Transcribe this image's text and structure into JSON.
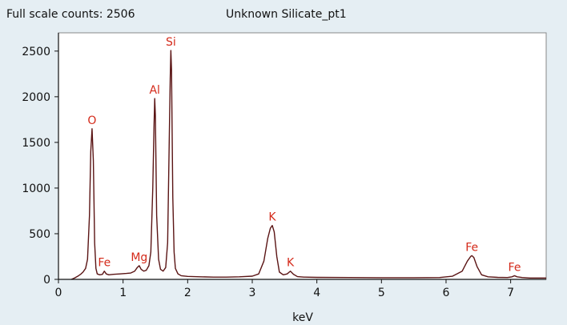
{
  "header": {
    "full_scale": "Full scale counts: 2506",
    "title": "Unknown Silicate_pt1"
  },
  "chart_data": {
    "type": "line",
    "title": "Unknown Silicate_pt1",
    "xlabel": "keV",
    "ylabel": "",
    "xlim": [
      0,
      7.55
    ],
    "ylim": [
      0,
      2700
    ],
    "x_ticks": [
      0,
      1,
      2,
      3,
      4,
      5,
      6,
      7
    ],
    "y_ticks": [
      0,
      500,
      1000,
      1500,
      2000,
      2500
    ],
    "grid": false,
    "full_scale_counts": 2506,
    "peaks": [
      {
        "element": "O",
        "energy": 0.52,
        "counts": 1650
      },
      {
        "element": "Fe",
        "energy": 0.71,
        "counts": 90
      },
      {
        "element": "Mg",
        "energy": 1.25,
        "counts": 150
      },
      {
        "element": "Al",
        "energy": 1.49,
        "counts": 1980
      },
      {
        "element": "Si",
        "energy": 1.74,
        "counts": 2506
      },
      {
        "element": "K",
        "energy": 3.31,
        "counts": 590
      },
      {
        "element": "K",
        "energy": 3.59,
        "counts": 90
      },
      {
        "element": "Fe",
        "energy": 6.4,
        "counts": 260
      },
      {
        "element": "Fe",
        "energy": 7.06,
        "counts": 40
      }
    ],
    "series": [
      {
        "x": [
          0.2,
          0.25,
          0.3,
          0.35,
          0.38,
          0.42,
          0.45,
          0.48,
          0.5,
          0.52,
          0.54,
          0.56,
          0.58,
          0.6,
          0.64,
          0.68,
          0.71,
          0.74,
          0.78,
          0.85,
          0.95,
          1.05,
          1.12,
          1.18,
          1.22,
          1.25,
          1.28,
          1.32,
          1.36,
          1.4,
          1.43,
          1.46,
          1.48,
          1.49,
          1.5,
          1.52,
          1.55,
          1.58,
          1.62,
          1.66,
          1.69,
          1.71,
          1.73,
          1.74,
          1.75,
          1.77,
          1.79,
          1.81,
          1.85,
          1.9,
          2.0,
          2.2,
          2.4,
          2.6,
          2.8,
          3.0,
          3.1,
          3.18,
          3.24,
          3.28,
          3.31,
          3.34,
          3.38,
          3.42,
          3.48,
          3.54,
          3.59,
          3.64,
          3.7,
          3.8,
          4.0,
          4.5,
          5.0,
          5.5,
          5.9,
          6.1,
          6.25,
          6.33,
          6.38,
          6.4,
          6.43,
          6.48,
          6.55,
          6.65,
          6.8,
          6.95,
          7.02,
          7.06,
          7.1,
          7.18,
          7.3,
          7.55
        ],
        "y": [
          0,
          15,
          35,
          60,
          80,
          120,
          220,
          700,
          1400,
          1650,
          1300,
          400,
          120,
          60,
          50,
          55,
          90,
          60,
          50,
          55,
          60,
          65,
          70,
          90,
          130,
          150,
          110,
          90,
          100,
          150,
          300,
          1000,
          1700,
          1980,
          1800,
          700,
          220,
          110,
          90,
          130,
          400,
          1300,
          2200,
          2506,
          2300,
          900,
          300,
          120,
          60,
          40,
          32,
          28,
          25,
          25,
          28,
          35,
          60,
          200,
          450,
          560,
          590,
          520,
          250,
          80,
          50,
          60,
          90,
          55,
          30,
          25,
          22,
          20,
          18,
          18,
          20,
          35,
          90,
          200,
          250,
          260,
          240,
          140,
          50,
          28,
          22,
          20,
          28,
          40,
          28,
          20,
          15,
          15
        ]
      }
    ]
  }
}
